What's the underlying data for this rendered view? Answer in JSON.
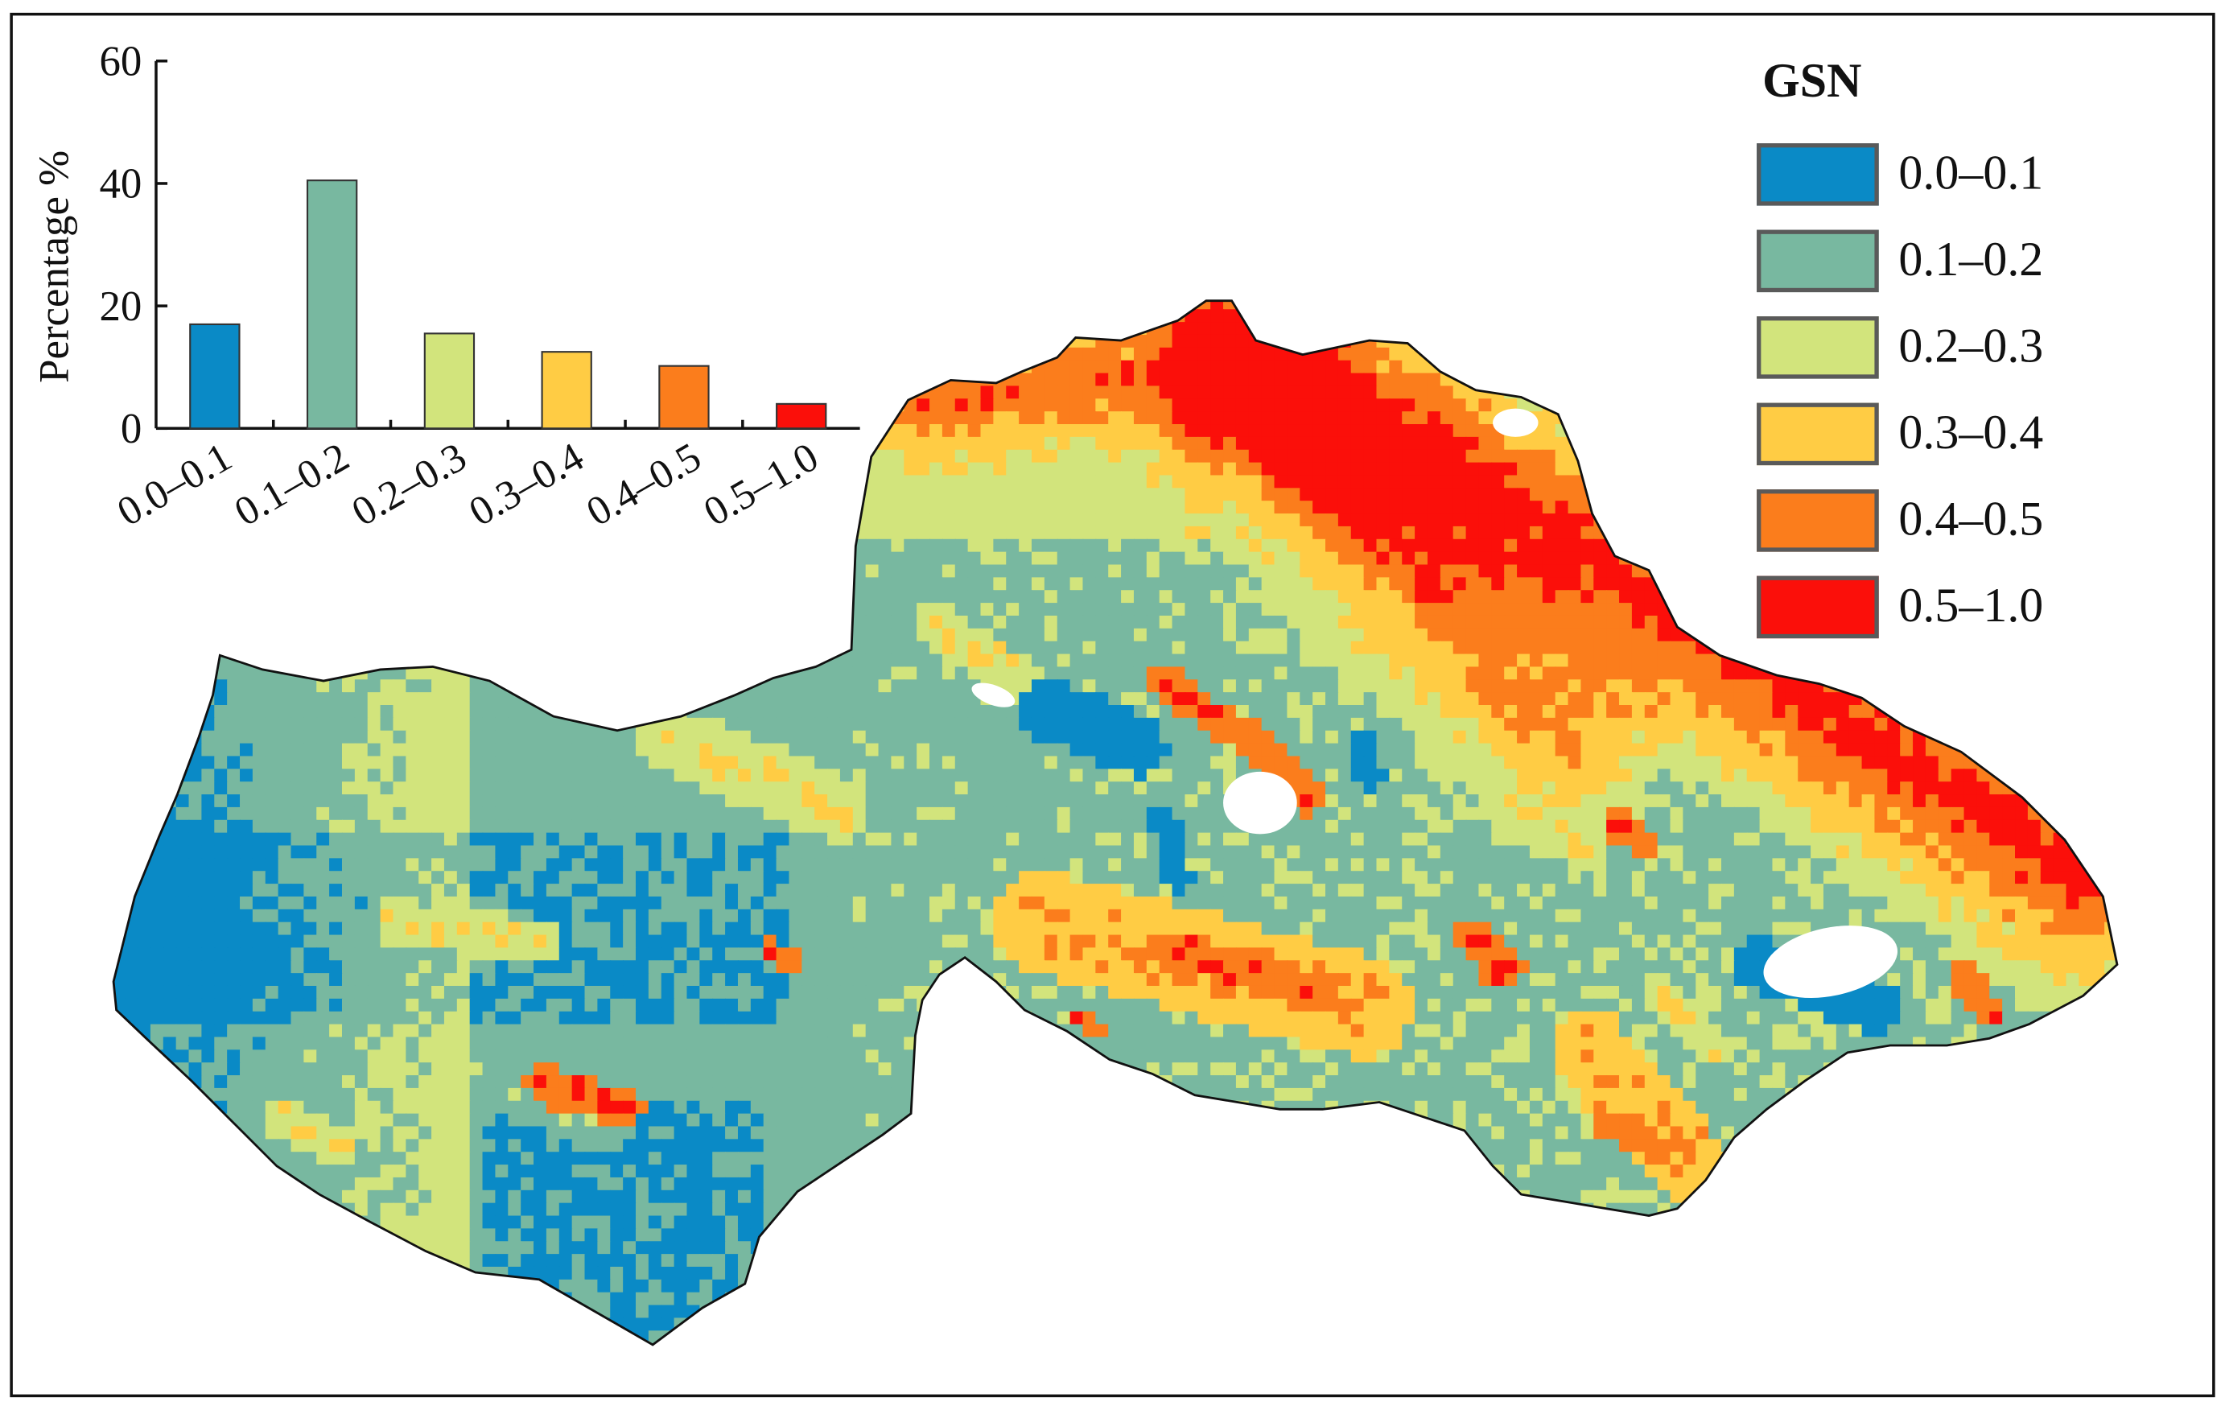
{
  "legend": {
    "title": "GSN",
    "items": [
      {
        "label": "0.0–0.1",
        "color": "#0a8ac6"
      },
      {
        "label": "0.1–0.2",
        "color": "#78b8a0"
      },
      {
        "label": "0.2–0.3",
        "color": "#d2e47c"
      },
      {
        "label": "0.3–0.4",
        "color": "#ffcc44"
      },
      {
        "label": "0.4–0.5",
        "color": "#fb7d1c"
      },
      {
        "label": "0.5–1.0",
        "color": "#fb0f0a"
      }
    ]
  },
  "chart_data": {
    "type": "bar",
    "categories": [
      "0.0–0.1",
      "0.1–0.2",
      "0.2–0.3",
      "0.3–0.4",
      "0.4–0.5",
      "0.5–1.0"
    ],
    "values": [
      17,
      40.5,
      15.5,
      12.5,
      10.2,
      4
    ],
    "colors": [
      "#0a8ac6",
      "#78b8a0",
      "#d2e47c",
      "#ffcc44",
      "#fb7d1c",
      "#fb0f0a"
    ],
    "xlabel": "",
    "ylabel": "Percentage %",
    "ylim": [
      0,
      60
    ],
    "yticks": [
      0,
      20,
      40,
      60
    ],
    "grid": false
  },
  "map": {
    "nodata_color": "#ffffff",
    "outline_color": "#111111"
  }
}
